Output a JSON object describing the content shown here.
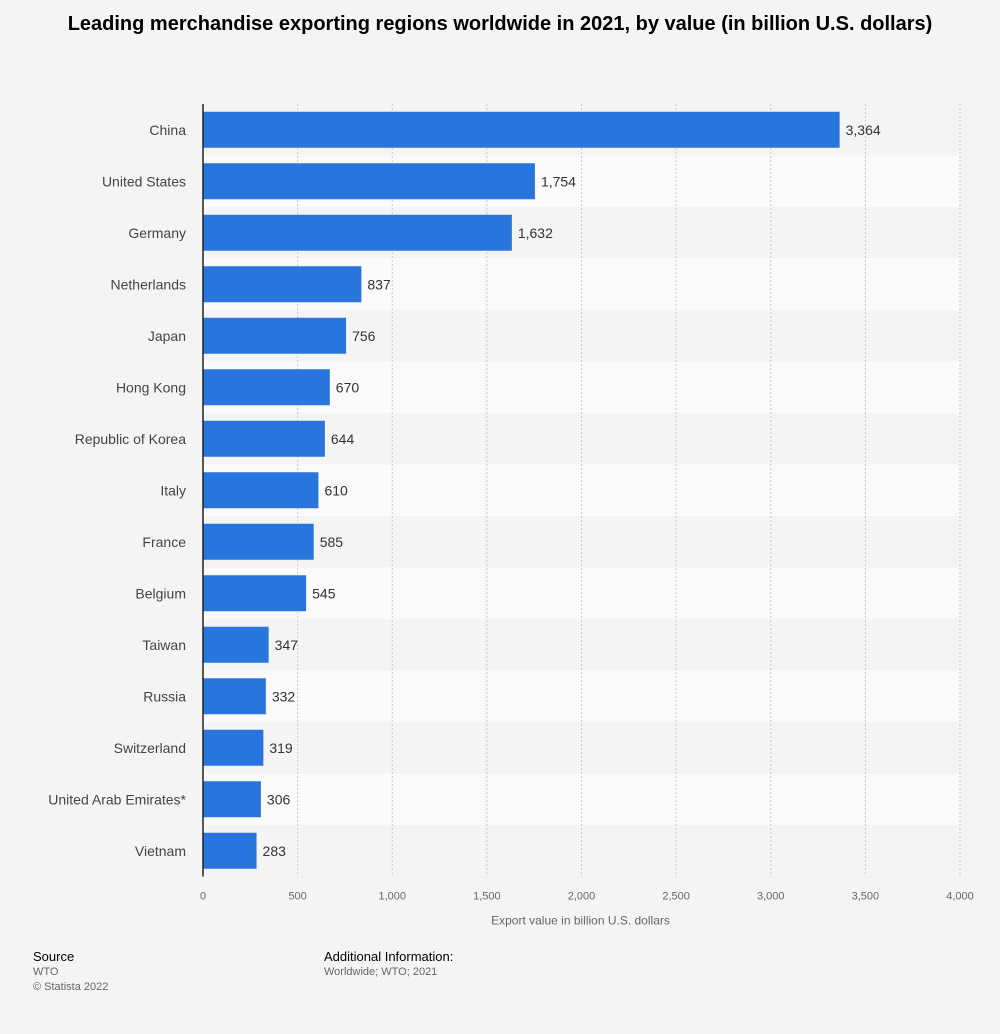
{
  "chart_data": {
    "type": "bar",
    "orientation": "horizontal",
    "title": "Leading merchandise exporting regions worldwide in 2021, by value (in billion U.S. dollars)",
    "xlabel": "Export value in billion U.S. dollars",
    "ylabel": "",
    "categories": [
      "China",
      "United States",
      "Germany",
      "Netherlands",
      "Japan",
      "Hong Kong",
      "Republic of Korea",
      "Italy",
      "France",
      "Belgium",
      "Taiwan",
      "Russia",
      "Switzerland",
      "United Arab Emirates*",
      "Vietnam"
    ],
    "values": [
      3364,
      1754,
      1632,
      837,
      756,
      670,
      644,
      610,
      585,
      545,
      347,
      332,
      319,
      306,
      283
    ],
    "value_labels": [
      "3,364",
      "1,754",
      "1,632",
      "837",
      "756",
      "670",
      "644",
      "610",
      "585",
      "545",
      "347",
      "332",
      "319",
      "306",
      "283"
    ],
    "xlim": [
      0,
      4000
    ],
    "ticks": [
      0,
      500,
      1000,
      1500,
      2000,
      2500,
      3000,
      3500,
      4000
    ],
    "tick_labels": [
      "0",
      "500",
      "1,000",
      "1,500",
      "2,000",
      "2,500",
      "3,000",
      "3,500",
      "4,000"
    ],
    "grid": true,
    "bar_color": "#2876dd"
  },
  "footer": {
    "source_heading": "Source",
    "source_name": "WTO",
    "copyright": "© Statista 2022",
    "additional_heading": "Additional Information:",
    "additional_text": "Worldwide; WTO; 2021"
  }
}
